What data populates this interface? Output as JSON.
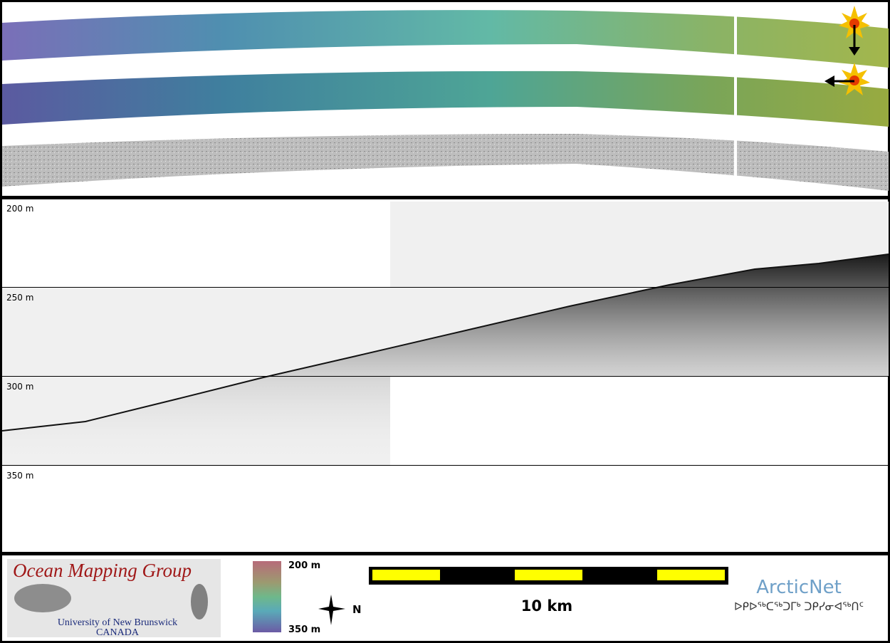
{
  "profile": {
    "depth_labels": [
      "200 m",
      "250 m",
      "300 m",
      "350 m"
    ]
  },
  "footer": {
    "logo": {
      "title": "Ocean Mapping Group",
      "university": "University of New Brunswick",
      "country": "CANADA"
    },
    "colorbar": {
      "top_label": "200 m",
      "bottom_label": "350 m"
    },
    "compass_label": "N",
    "scale_label": "10 km",
    "partner": {
      "name": "ArcticNet",
      "syllabics": "ᐅᑭᐅᖅᑕᖅᑐᒥᒃ ᑐᑭᓯᓂᐊᖅᑎᑦ"
    }
  }
}
